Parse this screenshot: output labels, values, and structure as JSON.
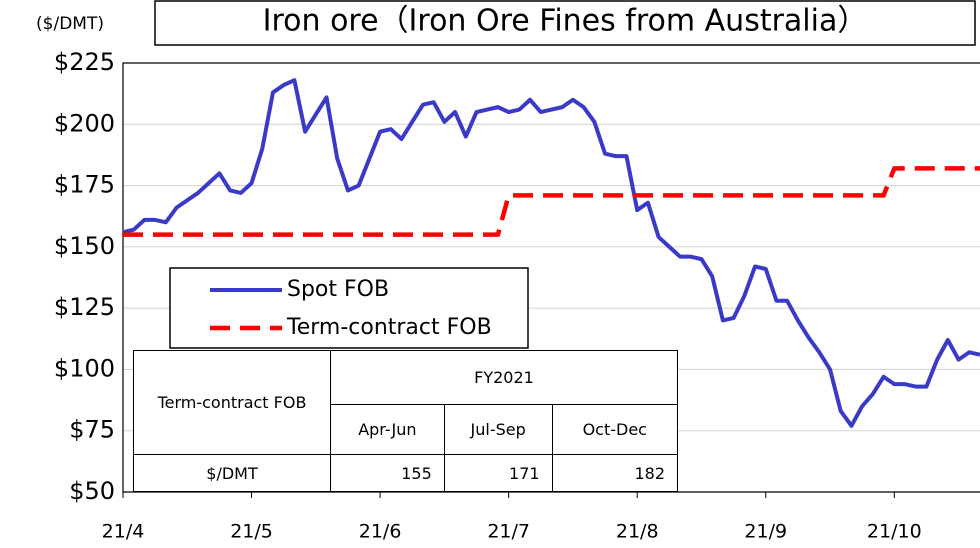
{
  "chart_data": {
    "type": "line",
    "title": "Iron ore（Iron Ore Fines from Australia）",
    "y_unit": "($/DMT)",
    "categories": [
      "21/4",
      null,
      null,
      null,
      null,
      null,
      null,
      null,
      null,
      null,
      null,
      null,
      "21/5",
      null,
      null,
      null,
      null,
      null,
      null,
      null,
      null,
      null,
      null,
      null,
      "21/6",
      null,
      null,
      null,
      null,
      null,
      null,
      null,
      null,
      null,
      null,
      null,
      "21/7",
      null,
      null,
      null,
      null,
      null,
      null,
      null,
      null,
      null,
      null,
      null,
      "21/8",
      null,
      null,
      null,
      null,
      null,
      null,
      null,
      null,
      null,
      null,
      null,
      "21/9",
      null,
      null,
      null,
      null,
      null,
      null,
      null,
      null,
      null,
      null,
      null,
      "21/10",
      null,
      null,
      null,
      null,
      null,
      null,
      null,
      null
    ],
    "series": [
      {
        "name": "Spot FOB",
        "color": "#3a3ac8",
        "style": "solid",
        "values": [
          156,
          157,
          161,
          161,
          160,
          166,
          169,
          172,
          176,
          180,
          173,
          172,
          176,
          190,
          213,
          216,
          218,
          197,
          204,
          211,
          186,
          173,
          175,
          186,
          197,
          198,
          194,
          201,
          208,
          209,
          201,
          205,
          195,
          205,
          206,
          207,
          205,
          206,
          210,
          205,
          206,
          207,
          210,
          207,
          201,
          188,
          187,
          187,
          165,
          168,
          154,
          150,
          146,
          146,
          145,
          138,
          120,
          121,
          130,
          142,
          141,
          128,
          128,
          120,
          113,
          107,
          100,
          83,
          77,
          85,
          90,
          97,
          94,
          94,
          93,
          93,
          104,
          112,
          104,
          107,
          106
        ]
      },
      {
        "name": "Term-contract FOB",
        "color": "#ff0000",
        "style": "dashed",
        "values": [
          155,
          155,
          155,
          155,
          155,
          155,
          155,
          155,
          155,
          155,
          155,
          155,
          155,
          155,
          155,
          155,
          155,
          155,
          155,
          155,
          155,
          155,
          155,
          155,
          155,
          155,
          155,
          155,
          155,
          155,
          155,
          155,
          155,
          155,
          155,
          155,
          171,
          171,
          171,
          171,
          171,
          171,
          171,
          171,
          171,
          171,
          171,
          171,
          171,
          171,
          171,
          171,
          171,
          171,
          171,
          171,
          171,
          171,
          171,
          171,
          171,
          171,
          171,
          171,
          171,
          171,
          171,
          171,
          171,
          171,
          171,
          171,
          182,
          182,
          182,
          182,
          182,
          182,
          182,
          182,
          182
        ]
      }
    ],
    "ylim": [
      50,
      225
    ],
    "yticks": [
      {
        "value": 50,
        "label": "$50"
      },
      {
        "value": 75,
        "label": "$75"
      },
      {
        "value": 100,
        "label": "$100"
      },
      {
        "value": 125,
        "label": "$125"
      },
      {
        "value": 150,
        "label": "$150"
      },
      {
        "value": 175,
        "label": "$175"
      },
      {
        "value": 200,
        "label": "$200"
      },
      {
        "value": 225,
        "label": "$225"
      }
    ],
    "grid": true,
    "table": {
      "corner": "Term-contract FOB",
      "group": "FY2021",
      "columns": [
        "Apr-Jun",
        "Jul-Sep",
        "Oct-Dec"
      ],
      "row_label": "$/DMT",
      "values": [
        155,
        171,
        182
      ]
    }
  }
}
